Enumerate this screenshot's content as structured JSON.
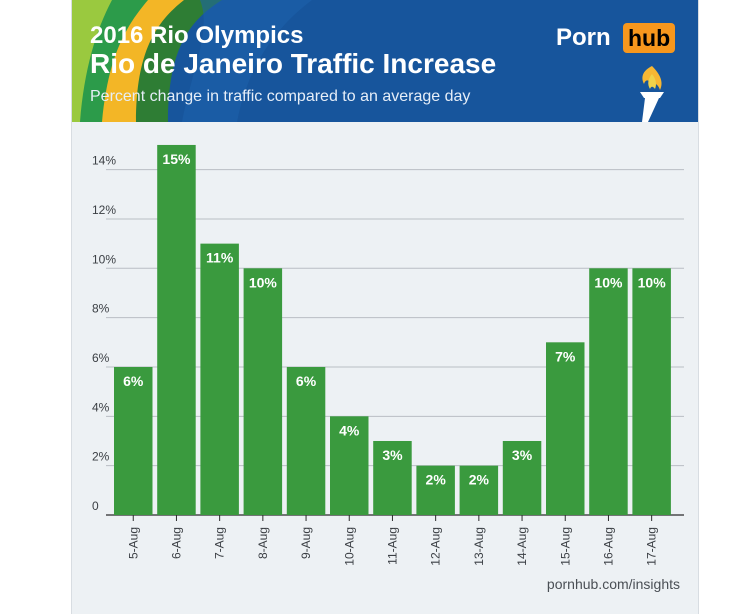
{
  "header": {
    "title_line1": "2016 Rio Olympics",
    "title_line2": "Rio de Janeiro Traffic Increase",
    "subtitle": "Percent change in traffic compared to an average day",
    "logo_part1": "Porn",
    "logo_part2": "hub",
    "torch_icon": "torch-icon",
    "colors": {
      "background": "#17559c",
      "logo_accent": "#f7971d"
    }
  },
  "chart_data": {
    "type": "bar",
    "categories": [
      "5-Aug",
      "6-Aug",
      "7-Aug",
      "8-Aug",
      "9-Aug",
      "10-Aug",
      "11-Aug",
      "12-Aug",
      "13-Aug",
      "14-Aug",
      "15-Aug",
      "16-Aug",
      "17-Aug"
    ],
    "values": [
      6,
      15,
      11,
      10,
      6,
      4,
      3,
      2,
      2,
      3,
      7,
      10,
      10
    ],
    "value_labels": [
      "6%",
      "15%",
      "11%",
      "10%",
      "6%",
      "4%",
      "3%",
      "2%",
      "2%",
      "3%",
      "7%",
      "10%",
      "10%"
    ],
    "ylim": [
      0,
      15
    ],
    "yticks": [
      0,
      2,
      4,
      6,
      8,
      10,
      12,
      14
    ],
    "ytick_labels": [
      "0",
      "2%",
      "4%",
      "6%",
      "8%",
      "10%",
      "12%",
      "14%"
    ],
    "grid": true,
    "bar_color": "#3a9a3e"
  },
  "footer": {
    "source": "pornhub.com/insights"
  }
}
